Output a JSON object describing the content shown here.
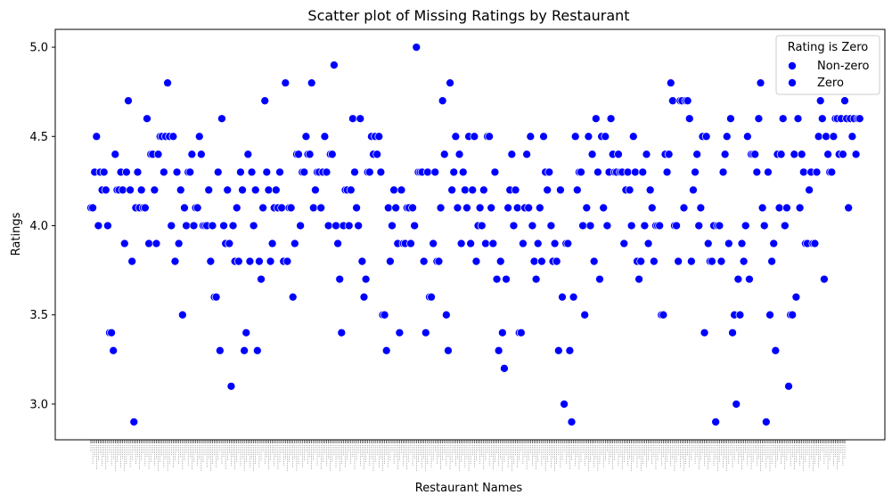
{
  "chart_data": {
    "type": "scatter",
    "title": "Scatter plot of Missing Ratings by Restaurant",
    "xlabel": "Restaurant Names",
    "ylabel": "Ratings",
    "ylim": [
      2.8,
      5.1
    ],
    "yticks": [
      3.0,
      3.5,
      4.0,
      4.5,
      5.0
    ],
    "ytick_labels": [
      "3.0",
      "3.5",
      "4.0",
      "4.5",
      "5.0"
    ],
    "x_category_count": 404,
    "grid": false,
    "legend": {
      "title": "Rating is Zero",
      "placement": "top-right",
      "entries": [
        {
          "label": "Non-zero",
          "color": "#0000ff"
        },
        {
          "label": "Zero",
          "color": "#0000ff"
        }
      ]
    },
    "marker_color": "#0000ff",
    "values": [
      4.1,
      4.1,
      4.3,
      4.5,
      4.0,
      4.3,
      4.2,
      4.3,
      4.2,
      4.0,
      3.4,
      3.4,
      3.3,
      4.4,
      4.2,
      4.2,
      4.3,
      4.2,
      3.9,
      4.3,
      4.7,
      4.2,
      3.8,
      2.9,
      4.1,
      4.3,
      4.1,
      4.2,
      4.1,
      4.1,
      4.6,
      3.9,
      4.4,
      4.4,
      4.2,
      3.9,
      4.4,
      4.5,
      4.5,
      4.3,
      4.5,
      4.8,
      4.5,
      4.0,
      4.5,
      3.8,
      4.3,
      3.9,
      4.2,
      3.5,
      4.1,
      4.0,
      4.3,
      4.3,
      4.4,
      4.0,
      4.1,
      4.1,
      4.5,
      4.4,
      4.0,
      4.0,
      4.0,
      4.2,
      3.8,
      4.0,
      3.6,
      3.6,
      4.3,
      3.3,
      4.6,
      4.0,
      3.9,
      4.2,
      3.9,
      3.1,
      4.0,
      3.8,
      4.1,
      3.8,
      4.3,
      4.2,
      3.3,
      3.4,
      4.4,
      3.8,
      4.3,
      4.0,
      4.2,
      3.3,
      3.8,
      3.7,
      4.1,
      4.7,
      4.3,
      4.2,
      3.8,
      3.9,
      4.1,
      4.2,
      4.1,
      4.3,
      4.1,
      3.8,
      4.8,
      3.8,
      4.1,
      4.1,
      3.6,
      3.9,
      4.4,
      4.4,
      4.0,
      4.3,
      4.3,
      4.5,
      4.4,
      4.4,
      4.8,
      4.1,
      4.2,
      4.3,
      4.3,
      4.1,
      4.3,
      4.5,
      4.3,
      4.0,
      4.4,
      4.4,
      4.9,
      4.0,
      3.9,
      3.7,
      3.4,
      4.0,
      4.2,
      4.2,
      4.0,
      4.2,
      4.6,
      4.3,
      4.1,
      4.0,
      4.6,
      3.8,
      3.6,
      3.7,
      4.3,
      4.3,
      4.5,
      4.4,
      4.5,
      4.4,
      4.5,
      4.3,
      3.5,
      3.5,
      3.3,
      4.1,
      3.8,
      4.0,
      4.2,
      4.1,
      3.9,
      3.4,
      4.2,
      3.9,
      3.9,
      4.1,
      4.1,
      3.9,
      4.1,
      4.0,
      5.0,
      4.3,
      4.3,
      4.3,
      3.8,
      3.4,
      4.3,
      3.6,
      3.6,
      3.9,
      4.3,
      3.8,
      3.8,
      4.1,
      4.7,
      4.4,
      3.5,
      3.3,
      4.8,
      4.2,
      4.3,
      4.5,
      4.1,
      4.4,
      3.9,
      4.3,
      4.2,
      4.1,
      4.5,
      3.9,
      4.2,
      4.5,
      3.8,
      4.0,
      4.1,
      4.0,
      4.2,
      3.9,
      4.5,
      4.5,
      4.1,
      3.9,
      4.3,
      3.7,
      3.3,
      3.8,
      3.4,
      3.2,
      3.7,
      4.1,
      4.2,
      4.4,
      4.0,
      4.2,
      4.1,
      3.4,
      3.4,
      3.9,
      4.1,
      4.4,
      4.1,
      4.5,
      4.0,
      3.8,
      3.7,
      3.9,
      4.1,
      3.8,
      4.5,
      4.3,
      4.2,
      4.3,
      4.0,
      3.8,
      3.9,
      3.8,
      3.3,
      4.2,
      3.6,
      3.0,
      3.9,
      3.9,
      3.3,
      2.9,
      3.6,
      4.5,
      4.2,
      4.3,
      4.3,
      4.0,
      3.5,
      4.1,
      4.5,
      4.0,
      4.4,
      3.8,
      4.6,
      4.3,
      3.7,
      4.5,
      4.1,
      4.5,
      4.0,
      4.3,
      4.6,
      4.4,
      4.3,
      4.3,
      4.4,
      4.3,
      4.3,
      3.9,
      4.2,
      4.3,
      4.2,
      4.0,
      4.5,
      4.3,
      3.8,
      3.7,
      3.8,
      4.3,
      4.0,
      4.4,
      3.9,
      4.2,
      4.1,
      3.8,
      4.0,
      4.0,
      4.0,
      3.5,
      3.5,
      4.4,
      4.3,
      4.4,
      4.8,
      4.7,
      4.0,
      4.0,
      3.8,
      4.7,
      4.7,
      4.1,
      4.7,
      4.7,
      4.6,
      3.8,
      4.2,
      4.3,
      4.4,
      4.0,
      4.1,
      4.5,
      3.4,
      4.5,
      3.9,
      3.8,
      3.8,
      4.0,
      2.9,
      4.0,
      4.0,
      3.8,
      4.3,
      4.4,
      4.5,
      3.9,
      4.6,
      3.4,
      3.5,
      3.0,
      3.7,
      3.5,
      3.9,
      3.8,
      4.0,
      4.5,
      3.7,
      4.4,
      4.4,
      4.4,
      4.3,
      4.6,
      4.8,
      4.1,
      4.0,
      2.9,
      4.3,
      3.5,
      3.8,
      3.9,
      3.3,
      4.4,
      4.1,
      4.4,
      4.6,
      4.0,
      4.1,
      3.1,
      3.5,
      3.5,
      4.4,
      3.6,
      4.6,
      4.1,
      4.4,
      4.3,
      3.9,
      3.9,
      4.2,
      4.3,
      3.9,
      3.9,
      4.3,
      4.5,
      4.7,
      4.6,
      3.7,
      4.5,
      4.4,
      4.3,
      4.3,
      4.5,
      4.6,
      4.6,
      4.4,
      4.6,
      4.4,
      4.7,
      4.6,
      4.1,
      4.6,
      4.5,
      4.6,
      4.4,
      4.6,
      4.6
    ]
  }
}
